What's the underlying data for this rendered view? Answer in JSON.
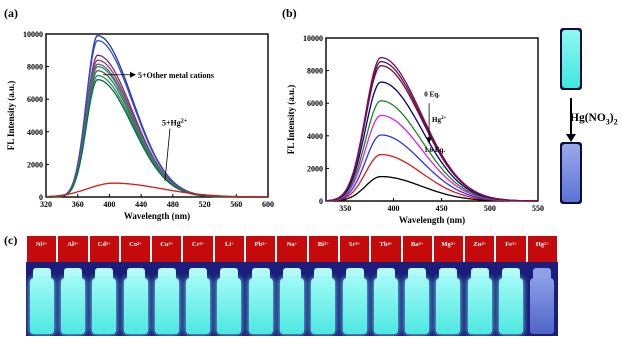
{
  "panel_labels": {
    "a": "(a)",
    "b": "(b)",
    "c": "(c)"
  },
  "colors": {
    "glow": "#5ef0ea",
    "quenched": "#5a74d6",
    "ion_bar": "#c40a0a",
    "strip": "#1a1d7a"
  },
  "chart_data": [
    {
      "type": "line",
      "xlabel": "Wavelength (nm)",
      "ylabel": "FL Intensity (a.u.)",
      "xlim": [
        320,
        600
      ],
      "ylim": [
        0,
        10000
      ],
      "xticks": [
        "320",
        "360",
        "400",
        "440",
        "480",
        "520",
        "560",
        "600"
      ],
      "yticks": [
        "0",
        "2000",
        "4000",
        "6000",
        "8000",
        "10000"
      ],
      "peak_x": 385,
      "series": [
        {
          "color": "#1a3a9e",
          "peak": 9900
        },
        {
          "color": "#3a4fcf",
          "peak": 9600
        },
        {
          "color": "#7a2e8a",
          "peak": 8700
        },
        {
          "color": "#a13a5a",
          "peak": 8400
        },
        {
          "color": "#5a6b7e",
          "peak": 8150
        },
        {
          "color": "#2a8a8a",
          "peak": 8000
        },
        {
          "color": "#4b6e3a",
          "peak": 7750
        },
        {
          "color": "#1f8f6a",
          "peak": 7450
        },
        {
          "color": "#0a6a4a",
          "peak": 7200
        },
        {
          "color": "#e01818",
          "peak": 850
        }
      ],
      "annotations": [
        "5+Other metal cations",
        "5+Hg2+"
      ],
      "annotation_parts": {
        "hg_prefix": "5+Hg",
        "hg_sup": "2+"
      }
    },
    {
      "type": "line",
      "xlabel": "Wavelength (nm)",
      "ylabel": "FL Intensity (a.u.)",
      "xlim": [
        330,
        550
      ],
      "ylim": [
        0,
        10000
      ],
      "xticks": [
        "350",
        "400",
        "450",
        "500",
        "550"
      ],
      "yticks": [
        "0",
        "2000",
        "4000",
        "6000",
        "8000",
        "10000"
      ],
      "peak_x": 387,
      "series": [
        {
          "color": "#000000",
          "peak": 1500
        },
        {
          "color": "#e01818",
          "peak": 2850
        },
        {
          "color": "#2a36e8",
          "peak": 4050
        },
        {
          "color": "#e020e0",
          "peak": 5250
        },
        {
          "color": "#1a8a1a",
          "peak": 6150
        },
        {
          "color": "#000080",
          "peak": 7300
        },
        {
          "color": "#7a0a2a",
          "peak": 8300
        },
        {
          "color": "#4a1a6a",
          "peak": 8550
        },
        {
          "color": "#8a0a4a",
          "peak": 8800
        }
      ],
      "annotations": [
        "0 Eq.",
        "Hg2+",
        "1.6 Eq."
      ],
      "annotation_parts": {
        "start": "0 Eq.",
        "ion": "Hg",
        "ion_sup": "2+",
        "end": "1.6 Eq."
      }
    }
  ],
  "photo_label": {
    "text": "Hg(NO",
    "sub": "3",
    "tail": ")",
    "sub2": "2"
  },
  "ions": [
    "Ni2+",
    "Al3+",
    "Cd2+",
    "Co2+",
    "Cu2+",
    "Cr3+",
    "Li+",
    "Pb2+",
    "Na+",
    "Bi3+",
    "Sr2+",
    "Th4+",
    "Ba2+",
    "Mg2+",
    "Zn2+",
    "Fe3+",
    "Hg2+"
  ],
  "ion_display": [
    {
      "base": "Ni",
      "sup": "2+"
    },
    {
      "base": "Al",
      "sup": "3+"
    },
    {
      "base": "Cd",
      "sup": "2+"
    },
    {
      "base": "Co",
      "sup": "2+"
    },
    {
      "base": "Cu",
      "sup": "2+"
    },
    {
      "base": "Cr",
      "sup": "3+"
    },
    {
      "base": "Li",
      "sup": "+"
    },
    {
      "base": "Pb",
      "sup": "2+"
    },
    {
      "base": "Na",
      "sup": "+"
    },
    {
      "base": "Bi",
      "sup": "3+"
    },
    {
      "base": "Sr",
      "sup": "2+"
    },
    {
      "base": "Th",
      "sup": "4+"
    },
    {
      "base": "Ba",
      "sup": "2+"
    },
    {
      "base": "Mg",
      "sup": "2+"
    },
    {
      "base": "Zn",
      "sup": "2+"
    },
    {
      "base": "Fe",
      "sup": "3+"
    },
    {
      "base": "Hg",
      "sup": "2+"
    }
  ]
}
